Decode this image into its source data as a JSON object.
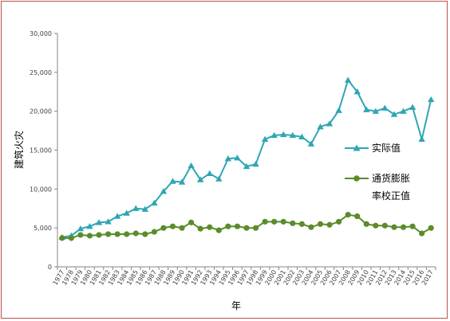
{
  "chart_data": {
    "type": "line",
    "xlabel": "年",
    "ylabel": "建筑火灾",
    "ylim": [
      0,
      30000
    ],
    "yticks": [
      0,
      5000,
      10000,
      15000,
      20000,
      25000,
      30000
    ],
    "ytick_labels": [
      "0",
      "5,000",
      "10,000",
      "15,000",
      "20,000",
      "25,000",
      "30,000"
    ],
    "grid": false,
    "legend_position": "right",
    "x": [
      "1977",
      "1978",
      "1979",
      "1980",
      "1981",
      "1982",
      "1983",
      "1984",
      "1985",
      "1986",
      "1987",
      "1988",
      "1989",
      "1990",
      "1991",
      "1992",
      "1993",
      "1994",
      "1995",
      "1996",
      "1997",
      "1998",
      "1999",
      "2000",
      "2001",
      "2002",
      "2003",
      "2004",
      "2005",
      "2006",
      "2007",
      "2008",
      "2009",
      "2010",
      "2011",
      "2012",
      "2013",
      "2014",
      "2015",
      "2016",
      "2017"
    ],
    "series": [
      {
        "name": "实际值",
        "color": "#2ea6b4",
        "marker": "triangle",
        "values": [
          3800,
          4000,
          4900,
          5200,
          5700,
          5800,
          6500,
          6900,
          7500,
          7400,
          8200,
          9700,
          11000,
          10900,
          13000,
          11200,
          12000,
          11300,
          13900,
          14000,
          12900,
          13200,
          16400,
          16900,
          17000,
          16900,
          16700,
          15800,
          18000,
          18400,
          20100,
          24000,
          22500,
          20200,
          20000,
          20400,
          19600,
          20000,
          20500,
          16400,
          21500
        ]
      },
      {
        "name": "通货膨胀率校正值",
        "color": "#5b8c2a",
        "marker": "circle",
        "values": [
          3700,
          3700,
          4100,
          4000,
          4100,
          4200,
          4200,
          4200,
          4300,
          4200,
          4500,
          5000,
          5200,
          5000,
          5700,
          4900,
          5100,
          4700,
          5200,
          5200,
          5000,
          5000,
          5800,
          5800,
          5800,
          5600,
          5500,
          5100,
          5500,
          5400,
          5800,
          6700,
          6500,
          5500,
          5300,
          5300,
          5100,
          5100,
          5200,
          4300,
          5000
        ]
      }
    ]
  },
  "legend": {
    "line1": "实际值",
    "line2a": "通货膨胀",
    "line2b": "率校正值"
  }
}
